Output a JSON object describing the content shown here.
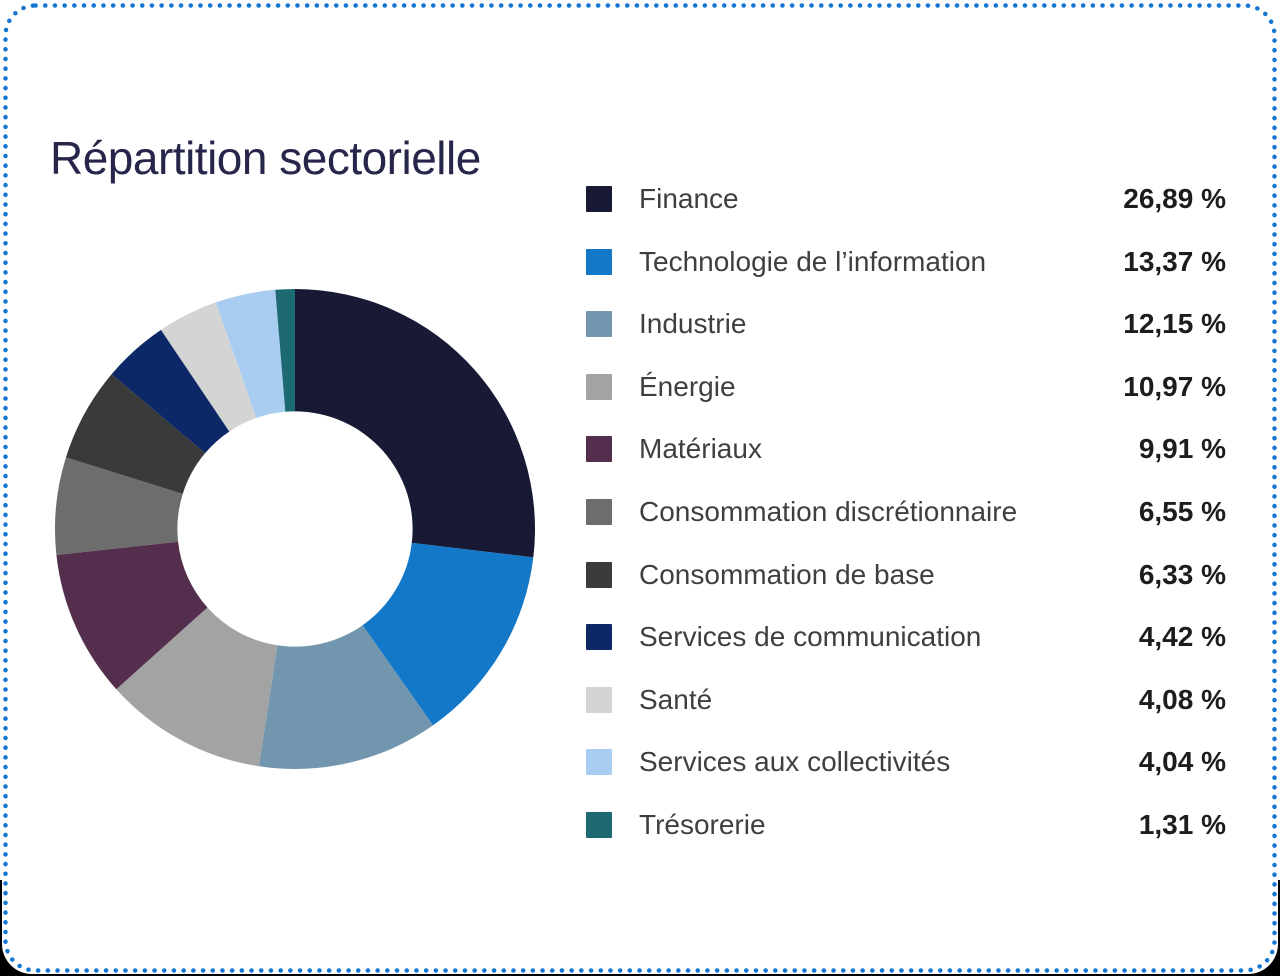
{
  "card": {
    "background": "#ffffff",
    "border_color": "#1576d2",
    "border_style": "dotted"
  },
  "header": {
    "title": "Répartition sectorielle",
    "title_color": "#26254a"
  },
  "chart_data": {
    "type": "pie",
    "subtype": "donut",
    "title": "Répartition sectorielle",
    "start_angle_deg": -90,
    "direction": "clockwise",
    "inner_radius_ratio": 0.49,
    "legend_position": "right",
    "categories": [
      "Finance",
      "Technologie de l’information",
      "Industrie",
      "Énergie",
      "Matériaux",
      "Consommation discrétionnaire",
      "Consommation de base",
      "Services de communication",
      "Santé",
      "Services aux collectivités",
      "Trésorerie"
    ],
    "values": [
      26.89,
      13.37,
      12.15,
      10.97,
      9.91,
      6.55,
      6.33,
      4.42,
      4.08,
      4.04,
      1.31
    ],
    "display_values": [
      "26,89 %",
      "13,37 %",
      "12,15 %",
      "10,97 %",
      "9,91 %",
      "6,55 %",
      "6,33 %",
      "4,42 %",
      "4,08 %",
      "4,04 %",
      "1,31 %"
    ],
    "colors": [
      "#181935",
      "#1478c8",
      "#7296ae",
      "#a3a3a3",
      "#542e4d",
      "#6d6d6d",
      "#3a3a3a",
      "#0d2866",
      "#d4d4d4",
      "#a9cdf0",
      "#1d6a73"
    ]
  }
}
